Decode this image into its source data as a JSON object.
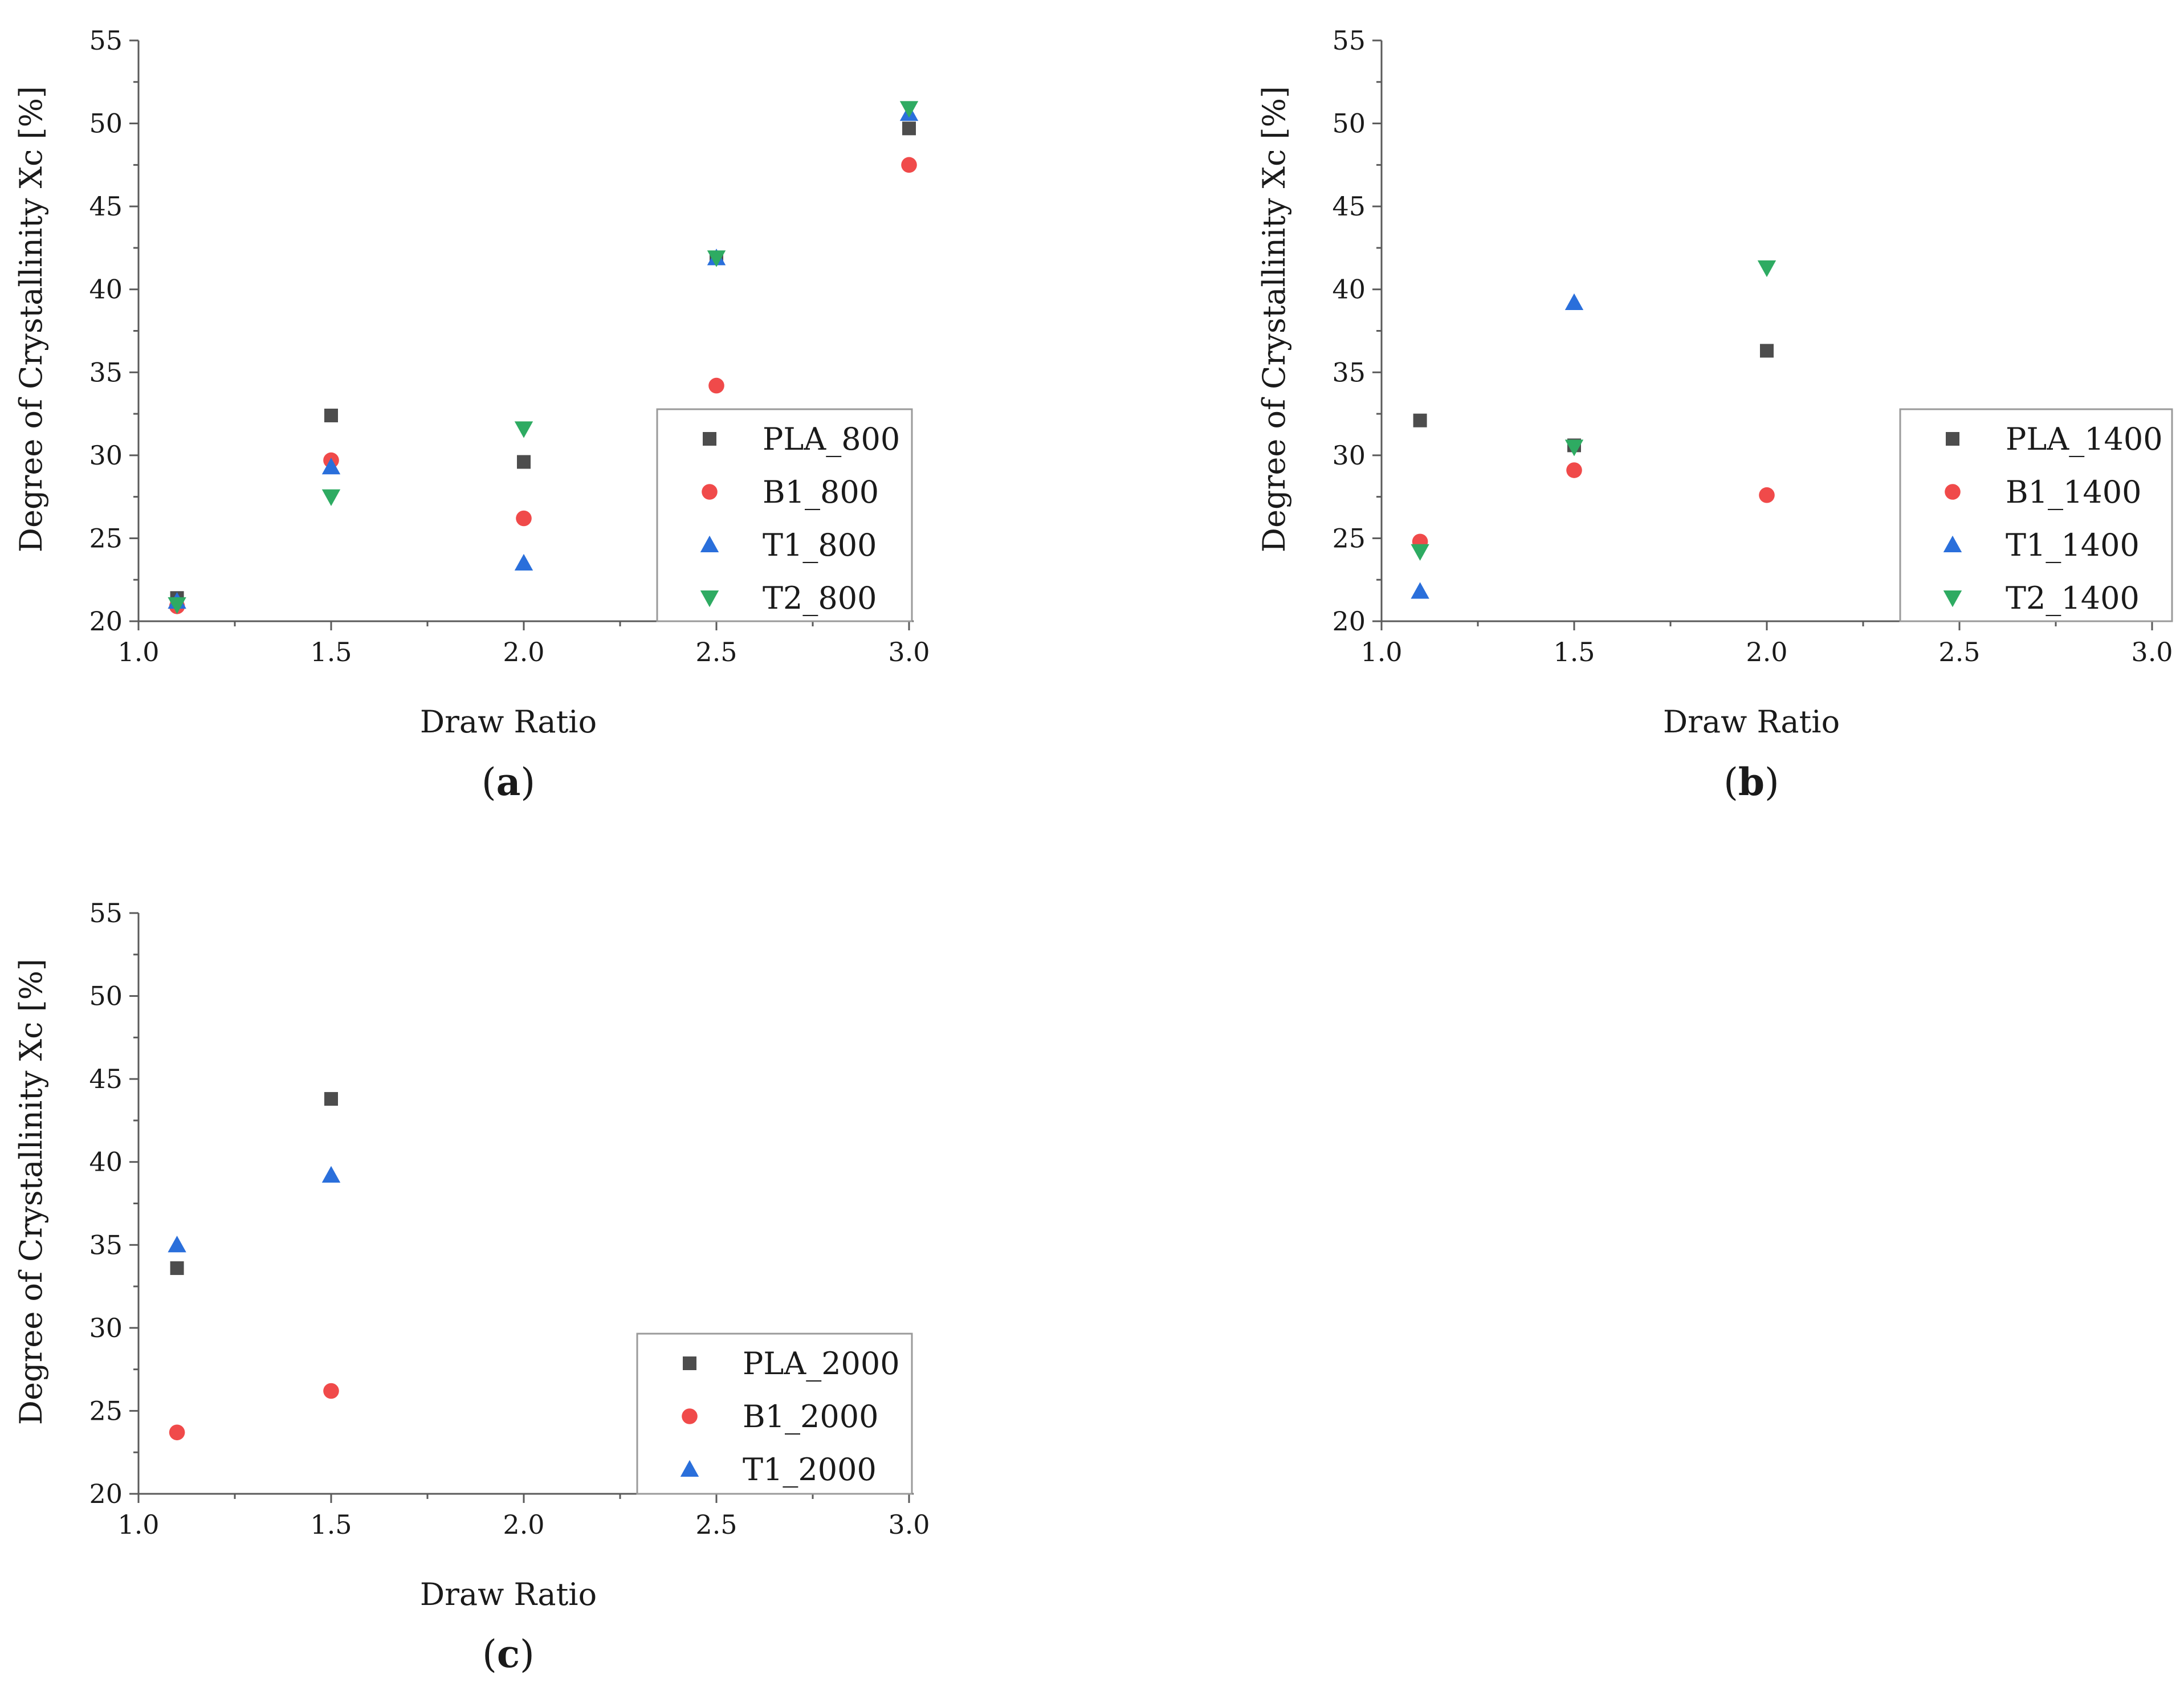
{
  "chart_data": [
    {
      "type": "scatter",
      "panel_label": "(a)",
      "panel_letter": "a",
      "xlabel": "Draw Ratio",
      "ylabel": "Degree of Crystallinity Xc [%]",
      "xlim": [
        1.0,
        3.0
      ],
      "ylim": [
        20,
        55
      ],
      "xticks": [
        "1.0",
        "1.5",
        "2.0",
        "2.5",
        "3.0"
      ],
      "yticks": [
        "20",
        "25",
        "30",
        "35",
        "40",
        "45",
        "50",
        "55"
      ],
      "legend_position": "right",
      "series": [
        {
          "name": "PLA_800",
          "marker": "square",
          "color": "#4d4d4d",
          "x": [
            1.1,
            1.5,
            2.0,
            2.5,
            3.0
          ],
          "y": [
            21.4,
            32.4,
            29.6,
            41.9,
            49.7
          ]
        },
        {
          "name": "B1_800",
          "marker": "circle",
          "color": "#f04a4a",
          "x": [
            1.1,
            1.5,
            2.0,
            2.5,
            3.0
          ],
          "y": [
            20.9,
            29.7,
            26.2,
            34.2,
            47.5
          ]
        },
        {
          "name": "T1_800",
          "marker": "triangle-up",
          "color": "#2a6fdb",
          "x": [
            1.1,
            1.5,
            2.0,
            2.5,
            3.0
          ],
          "y": [
            21.2,
            29.3,
            23.5,
            41.9,
            50.6
          ]
        },
        {
          "name": "T2_800",
          "marker": "triangle-down",
          "color": "#2eab62",
          "x": [
            1.1,
            1.5,
            2.0,
            2.5,
            3.0
          ],
          "y": [
            21.0,
            27.5,
            31.6,
            41.9,
            50.9
          ]
        }
      ]
    },
    {
      "type": "scatter",
      "panel_label": "(b)",
      "panel_letter": "b",
      "xlabel": "Draw Ratio",
      "ylabel": "Degree of Crystallinity Xc [%]",
      "xlim": [
        1.0,
        3.0
      ],
      "ylim": [
        20,
        55
      ],
      "xticks": [
        "1.0",
        "1.5",
        "2.0",
        "2.5",
        "3.0"
      ],
      "yticks": [
        "20",
        "25",
        "30",
        "35",
        "40",
        "45",
        "50",
        "55"
      ],
      "legend_position": "right",
      "series": [
        {
          "name": "PLA_1400",
          "marker": "square",
          "color": "#4d4d4d",
          "x": [
            1.1,
            1.5,
            2.0
          ],
          "y": [
            32.1,
            30.6,
            36.3
          ]
        },
        {
          "name": "B1_1400",
          "marker": "circle",
          "color": "#f04a4a",
          "x": [
            1.1,
            1.5,
            2.0
          ],
          "y": [
            24.8,
            29.1,
            27.6
          ]
        },
        {
          "name": "T1_1400",
          "marker": "triangle-up",
          "color": "#2a6fdb",
          "x": [
            1.1,
            1.5
          ],
          "y": [
            21.8,
            39.2
          ]
        },
        {
          "name": "T2_1400",
          "marker": "triangle-down",
          "color": "#2eab62",
          "x": [
            1.1,
            1.5,
            2.0
          ],
          "y": [
            24.2,
            30.5,
            41.3
          ]
        }
      ]
    },
    {
      "type": "scatter",
      "panel_label": "(c)",
      "panel_letter": "c",
      "xlabel": "Draw Ratio",
      "ylabel": "Degree of Crystallinity Xc [%]",
      "xlim": [
        1.0,
        3.0
      ],
      "ylim": [
        20,
        55
      ],
      "xticks": [
        "1.0",
        "1.5",
        "2.0",
        "2.5",
        "3.0"
      ],
      "yticks": [
        "20",
        "25",
        "30",
        "35",
        "40",
        "45",
        "50",
        "55"
      ],
      "legend_position": "right",
      "series": [
        {
          "name": "PLA_2000",
          "marker": "square",
          "color": "#4d4d4d",
          "x": [
            1.1,
            1.5
          ],
          "y": [
            33.6,
            43.8
          ]
        },
        {
          "name": "B1_2000",
          "marker": "circle",
          "color": "#f04a4a",
          "x": [
            1.1,
            1.5
          ],
          "y": [
            23.7,
            26.2
          ]
        },
        {
          "name": "T1_2000",
          "marker": "triangle-up",
          "color": "#2a6fdb",
          "x": [
            1.1,
            1.5
          ],
          "y": [
            35.0,
            39.2
          ]
        }
      ]
    }
  ]
}
